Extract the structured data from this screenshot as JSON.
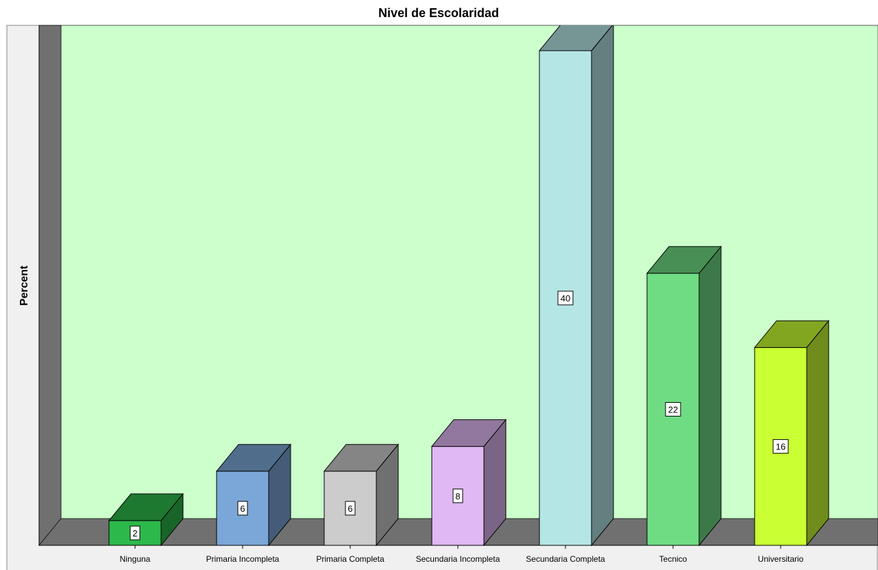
{
  "chart_data": {
    "type": "bar",
    "title": "Nivel de Escolaridad",
    "ylabel": "Percent",
    "xlabel": "",
    "categories": [
      "Ninguna",
      "Primaria Incompleta",
      "Primaria Completa",
      "Secundaria Incompleta",
      "Secundaria Completa",
      "Tecnico",
      "Universitario"
    ],
    "values": [
      2,
      6,
      6,
      8,
      40,
      22,
      16
    ],
    "ylim": [
      0,
      40
    ],
    "grid": false,
    "style": "3d",
    "colors": [
      "#2db84a",
      "#7ba7d8",
      "#cccccc",
      "#e0b8f3",
      "#b5e6e6",
      "#6fdc83",
      "#c9ff33"
    ],
    "background_color": "#ccffcc",
    "wall_color": "#707070"
  }
}
